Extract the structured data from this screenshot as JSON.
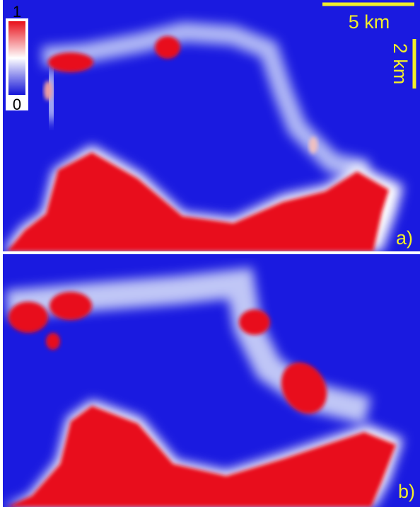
{
  "colorbar": {
    "max": 1,
    "min": 0
  },
  "scale_bars": {
    "horizontal": "5 km",
    "vertical": "2 km"
  },
  "panels": [
    {
      "label": "a)"
    },
    {
      "label": "b)"
    }
  ]
}
